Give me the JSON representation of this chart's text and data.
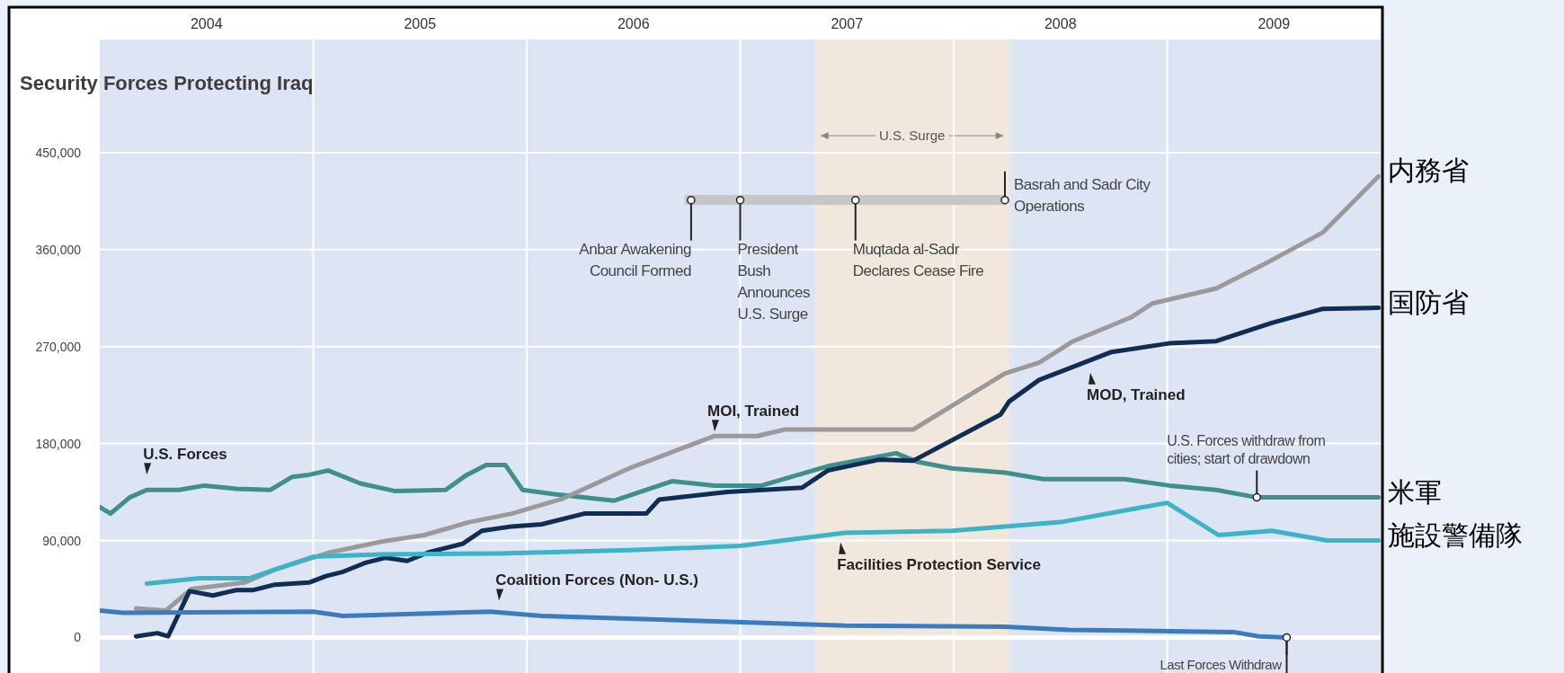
{
  "chart_data": {
    "type": "line",
    "title": "Security Forces Protecting Iraq",
    "xlim": [
      2004,
      2010
    ],
    "ylim": [
      -33000,
      555000
    ],
    "xticks": [
      {
        "value": 2004.5,
        "label": "2004"
      },
      {
        "value": 2005,
        "label": null
      },
      {
        "value": 2005.5,
        "label": "2005"
      },
      {
        "value": 2006,
        "label": null
      },
      {
        "value": 2006.5,
        "label": "2006"
      },
      {
        "value": 2007,
        "label": null
      },
      {
        "value": 2007.5,
        "label": "2007"
      },
      {
        "value": 2008,
        "label": null
      },
      {
        "value": 2008.5,
        "label": "2008"
      },
      {
        "value": 2009,
        "label": null
      },
      {
        "value": 2009.5,
        "label": "2009"
      }
    ],
    "yticks": [
      {
        "value": 0,
        "label": "0"
      },
      {
        "value": 90000,
        "label": "90,000"
      },
      {
        "value": 180000,
        "label": "180,000"
      },
      {
        "value": 270000,
        "label": "270,000"
      },
      {
        "value": 360000,
        "label": "360,000"
      },
      {
        "value": 450000,
        "label": "450,000"
      }
    ],
    "grid": true,
    "bands": [
      {
        "axis": "x",
        "from": 2007.35,
        "to": 2008.26,
        "label": "U.S. Surge",
        "color": "#f1e7dd"
      }
    ],
    "series": [
      {
        "name": "U.S. Forces",
        "color": "#3f8f8c",
        "x": [
          2004.0,
          2004.05,
          2004.14,
          2004.22,
          2004.37,
          2004.49,
          2004.64,
          2004.8,
          2004.9,
          2004.98,
          2005.07,
          2005.22,
          2005.38,
          2005.62,
          2005.72,
          2005.81,
          2005.9,
          2005.98,
          2006.13,
          2006.41,
          2006.68,
          2006.88,
          2007.1,
          2007.41,
          2007.73,
          2007.83,
          2007.99,
          2008.24,
          2008.42,
          2008.8,
          2009.01,
          2009.23,
          2009.42,
          2009.99
        ],
        "values": [
          121000,
          115000,
          130000,
          137000,
          137000,
          141000,
          138000,
          137000,
          149000,
          151000,
          155000,
          143000,
          136000,
          137000,
          151000,
          160000,
          160000,
          137000,
          133000,
          127000,
          145000,
          141000,
          141000,
          159000,
          171000,
          163000,
          157000,
          153000,
          147000,
          147000,
          141000,
          137000,
          130000,
          130000
        ]
      },
      {
        "name": "MOI, Trained",
        "color": "#9a9a9a",
        "x": [
          2004.17,
          2004.31,
          2004.43,
          2004.68,
          2004.82,
          2005.08,
          2005.32,
          2005.52,
          2005.73,
          2005.93,
          2006.17,
          2006.48,
          2006.88,
          2007.08,
          2007.21,
          2007.81,
          2008.24,
          2008.4,
          2008.56,
          2008.83,
          2008.93,
          2009.23,
          2009.45,
          2009.73,
          2009.99
        ],
        "values": [
          27000,
          25000,
          45000,
          51000,
          63000,
          79000,
          89000,
          95000,
          107000,
          115000,
          129000,
          157000,
          187000,
          187000,
          193000,
          193000,
          245000,
          255000,
          275000,
          297000,
          310000,
          324000,
          346000,
          376000,
          428000
        ]
      },
      {
        "name": "MOD, Trained",
        "color": "#0f2d55",
        "x": [
          2004.17,
          2004.27,
          2004.32,
          2004.42,
          2004.53,
          2004.64,
          2004.72,
          2004.82,
          2004.98,
          2005.06,
          2005.14,
          2005.24,
          2005.34,
          2005.44,
          2005.54,
          2005.7,
          2005.79,
          2005.93,
          2006.07,
          2006.27,
          2006.56,
          2006.62,
          2006.94,
          2007.29,
          2007.41,
          2007.65,
          2007.81,
          2008.22,
          2008.26,
          2008.4,
          2008.74,
          2009.01,
          2009.23,
          2009.49,
          2009.73,
          2009.99
        ],
        "values": [
          1000,
          4000,
          1000,
          43000,
          39000,
          44000,
          44000,
          49000,
          51000,
          57000,
          61000,
          69000,
          74000,
          71000,
          79000,
          87000,
          99000,
          103000,
          105000,
          115000,
          115000,
          128000,
          135000,
          139000,
          155000,
          165000,
          164000,
          207000,
          219000,
          239000,
          265000,
          273000,
          275000,
          292000,
          305000,
          306000
        ]
      },
      {
        "name": "Facilities Protection Service",
        "color": "#3ab4c6",
        "x": [
          2004.22,
          2004.47,
          2004.7,
          2005.0,
          2005.32,
          2005.87,
          2006.48,
          2007.0,
          2007.49,
          2007.99,
          2008.5,
          2009.0,
          2009.24,
          2009.49,
          2009.75,
          2009.99
        ],
        "values": [
          50000,
          55000,
          55000,
          75000,
          77000,
          78000,
          81000,
          85000,
          97000,
          99000,
          107000,
          125000,
          95000,
          99000,
          90000,
          90000
        ]
      },
      {
        "name": "Coalition Forces (Non- U.S.)",
        "color": "#3b7bbf",
        "x": [
          2004.0,
          2004.11,
          2005.0,
          2005.14,
          2005.83,
          2006.07,
          2006.88,
          2007.49,
          2008.24,
          2008.54,
          2009.31,
          2009.43,
          2009.56
        ],
        "values": [
          25000,
          23000,
          24000,
          20000,
          24000,
          20000,
          15000,
          11000,
          10000,
          7000,
          5000,
          1000,
          0
        ]
      },
      {
        "color": "#c6c6c6",
        "x": [
          2006.74,
          2008.24
        ],
        "values": [
          406000,
          406000
        ]
      }
    ],
    "annotations": [
      {
        "text": "Anbar Awakening\nCouncil Formed",
        "x": 2006.77,
        "y": 406000
      },
      {
        "text": "President\nBush\nAnnounces\nU.S. Surge",
        "x": 2007.0,
        "y": 406000
      },
      {
        "text": "Muqtada al-Sadr\nDeclares Cease Fire",
        "x": 2007.54,
        "y": 406000
      },
      {
        "text": "Basrah and Sadr City\nOperations",
        "x": 2008.24,
        "y": 406000
      },
      {
        "text": "U.S. Forces withdraw from\ncities; start of drawdown",
        "x": 2009.42,
        "y": 130000
      },
      {
        "text": "Last Forces Withdraw",
        "x": 2009.56,
        "y": 0
      },
      {
        "text": "内務省",
        "x": 2009.99,
        "y": 428000
      },
      {
        "text": "国防省",
        "x": 2009.99,
        "y": 306000
      },
      {
        "text": "米軍",
        "x": 2009.99,
        "y": 130000
      },
      {
        "text": "施設警備隊",
        "x": 2009.99,
        "y": 90000
      }
    ]
  }
}
